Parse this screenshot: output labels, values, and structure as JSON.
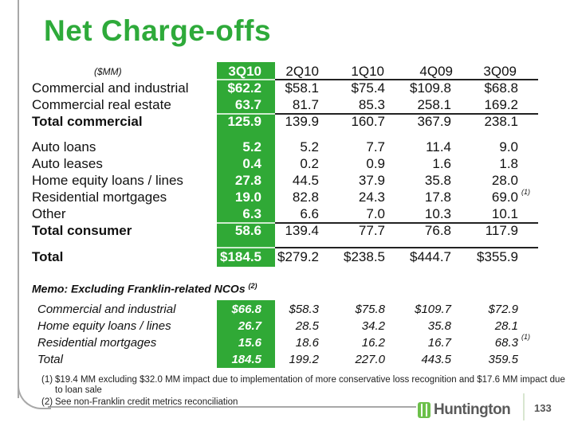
{
  "title": "Net Charge-offs",
  "units": "($MM)",
  "columns": [
    "3Q10",
    "2Q10",
    "1Q10",
    "4Q09",
    "3Q09"
  ],
  "rows": [
    {
      "label": "Commercial and industrial",
      "values": [
        "$62.2",
        "$58.1",
        "$75.4",
        "$109.8",
        "$68.8"
      ]
    },
    {
      "label": "Commercial real estate",
      "values": [
        "63.7",
        "81.7",
        "85.3",
        "258.1",
        "169.2"
      ]
    },
    {
      "label": "Total commercial",
      "values": [
        "125.9",
        "139.9",
        "160.7",
        "367.9",
        "238.1"
      ]
    },
    {
      "label": "Auto loans",
      "values": [
        "5.2",
        "5.2",
        "7.7",
        "11.4",
        "9.0"
      ]
    },
    {
      "label": "Auto leases",
      "values": [
        "0.4",
        "0.2",
        "0.9",
        "1.6",
        "1.8"
      ]
    },
    {
      "label": "Home equity loans / lines",
      "values": [
        "27.8",
        "44.5",
        "37.9",
        "35.8",
        "28.0"
      ]
    },
    {
      "label": "Residential mortgages",
      "values": [
        "19.0",
        "82.8",
        "24.3",
        "17.8",
        "69.0"
      ],
      "note": "(1)"
    },
    {
      "label": "Other",
      "values": [
        "6.3",
        "6.6",
        "7.0",
        "10.3",
        "10.1"
      ]
    },
    {
      "label": "Total consumer",
      "values": [
        "58.6",
        "139.4",
        "77.7",
        "76.8",
        "117.9"
      ]
    },
    {
      "label": "Total",
      "values": [
        "$184.5",
        "$279.2",
        "$238.5",
        "$444.7",
        "$355.9"
      ]
    }
  ],
  "memo": {
    "heading": "Memo: Excluding Franklin-related NCOs",
    "heading_note": "(2)",
    "rows": [
      {
        "label": "Commercial and industrial",
        "values": [
          "$66.8",
          "$58.3",
          "$75.8",
          "$109.7",
          "$72.9"
        ]
      },
      {
        "label": "Home equity loans / lines",
        "values": [
          "26.7",
          "28.5",
          "34.2",
          "35.8",
          "28.1"
        ]
      },
      {
        "label": "Residential mortgages",
        "values": [
          "15.6",
          "18.6",
          "16.2",
          "16.7",
          "68.3"
        ],
        "note": "(1)"
      },
      {
        "label": "Total",
        "values": [
          "184.5",
          "199.2",
          "227.0",
          "443.5",
          "359.5"
        ]
      }
    ]
  },
  "footnotes": [
    {
      "num": "(1)",
      "text": "$19.4 MM excluding $32.0 MM impact due to implementation of more conservative loss recognition and $17.6 MM impact due to loan sale"
    },
    {
      "num": "(2)",
      "text": "See non-Franklin credit metrics reconciliation"
    }
  ],
  "logo": "Huntington",
  "page_number": "133",
  "colors": {
    "accent": "#30a936",
    "title": "#2eaa3a"
  }
}
